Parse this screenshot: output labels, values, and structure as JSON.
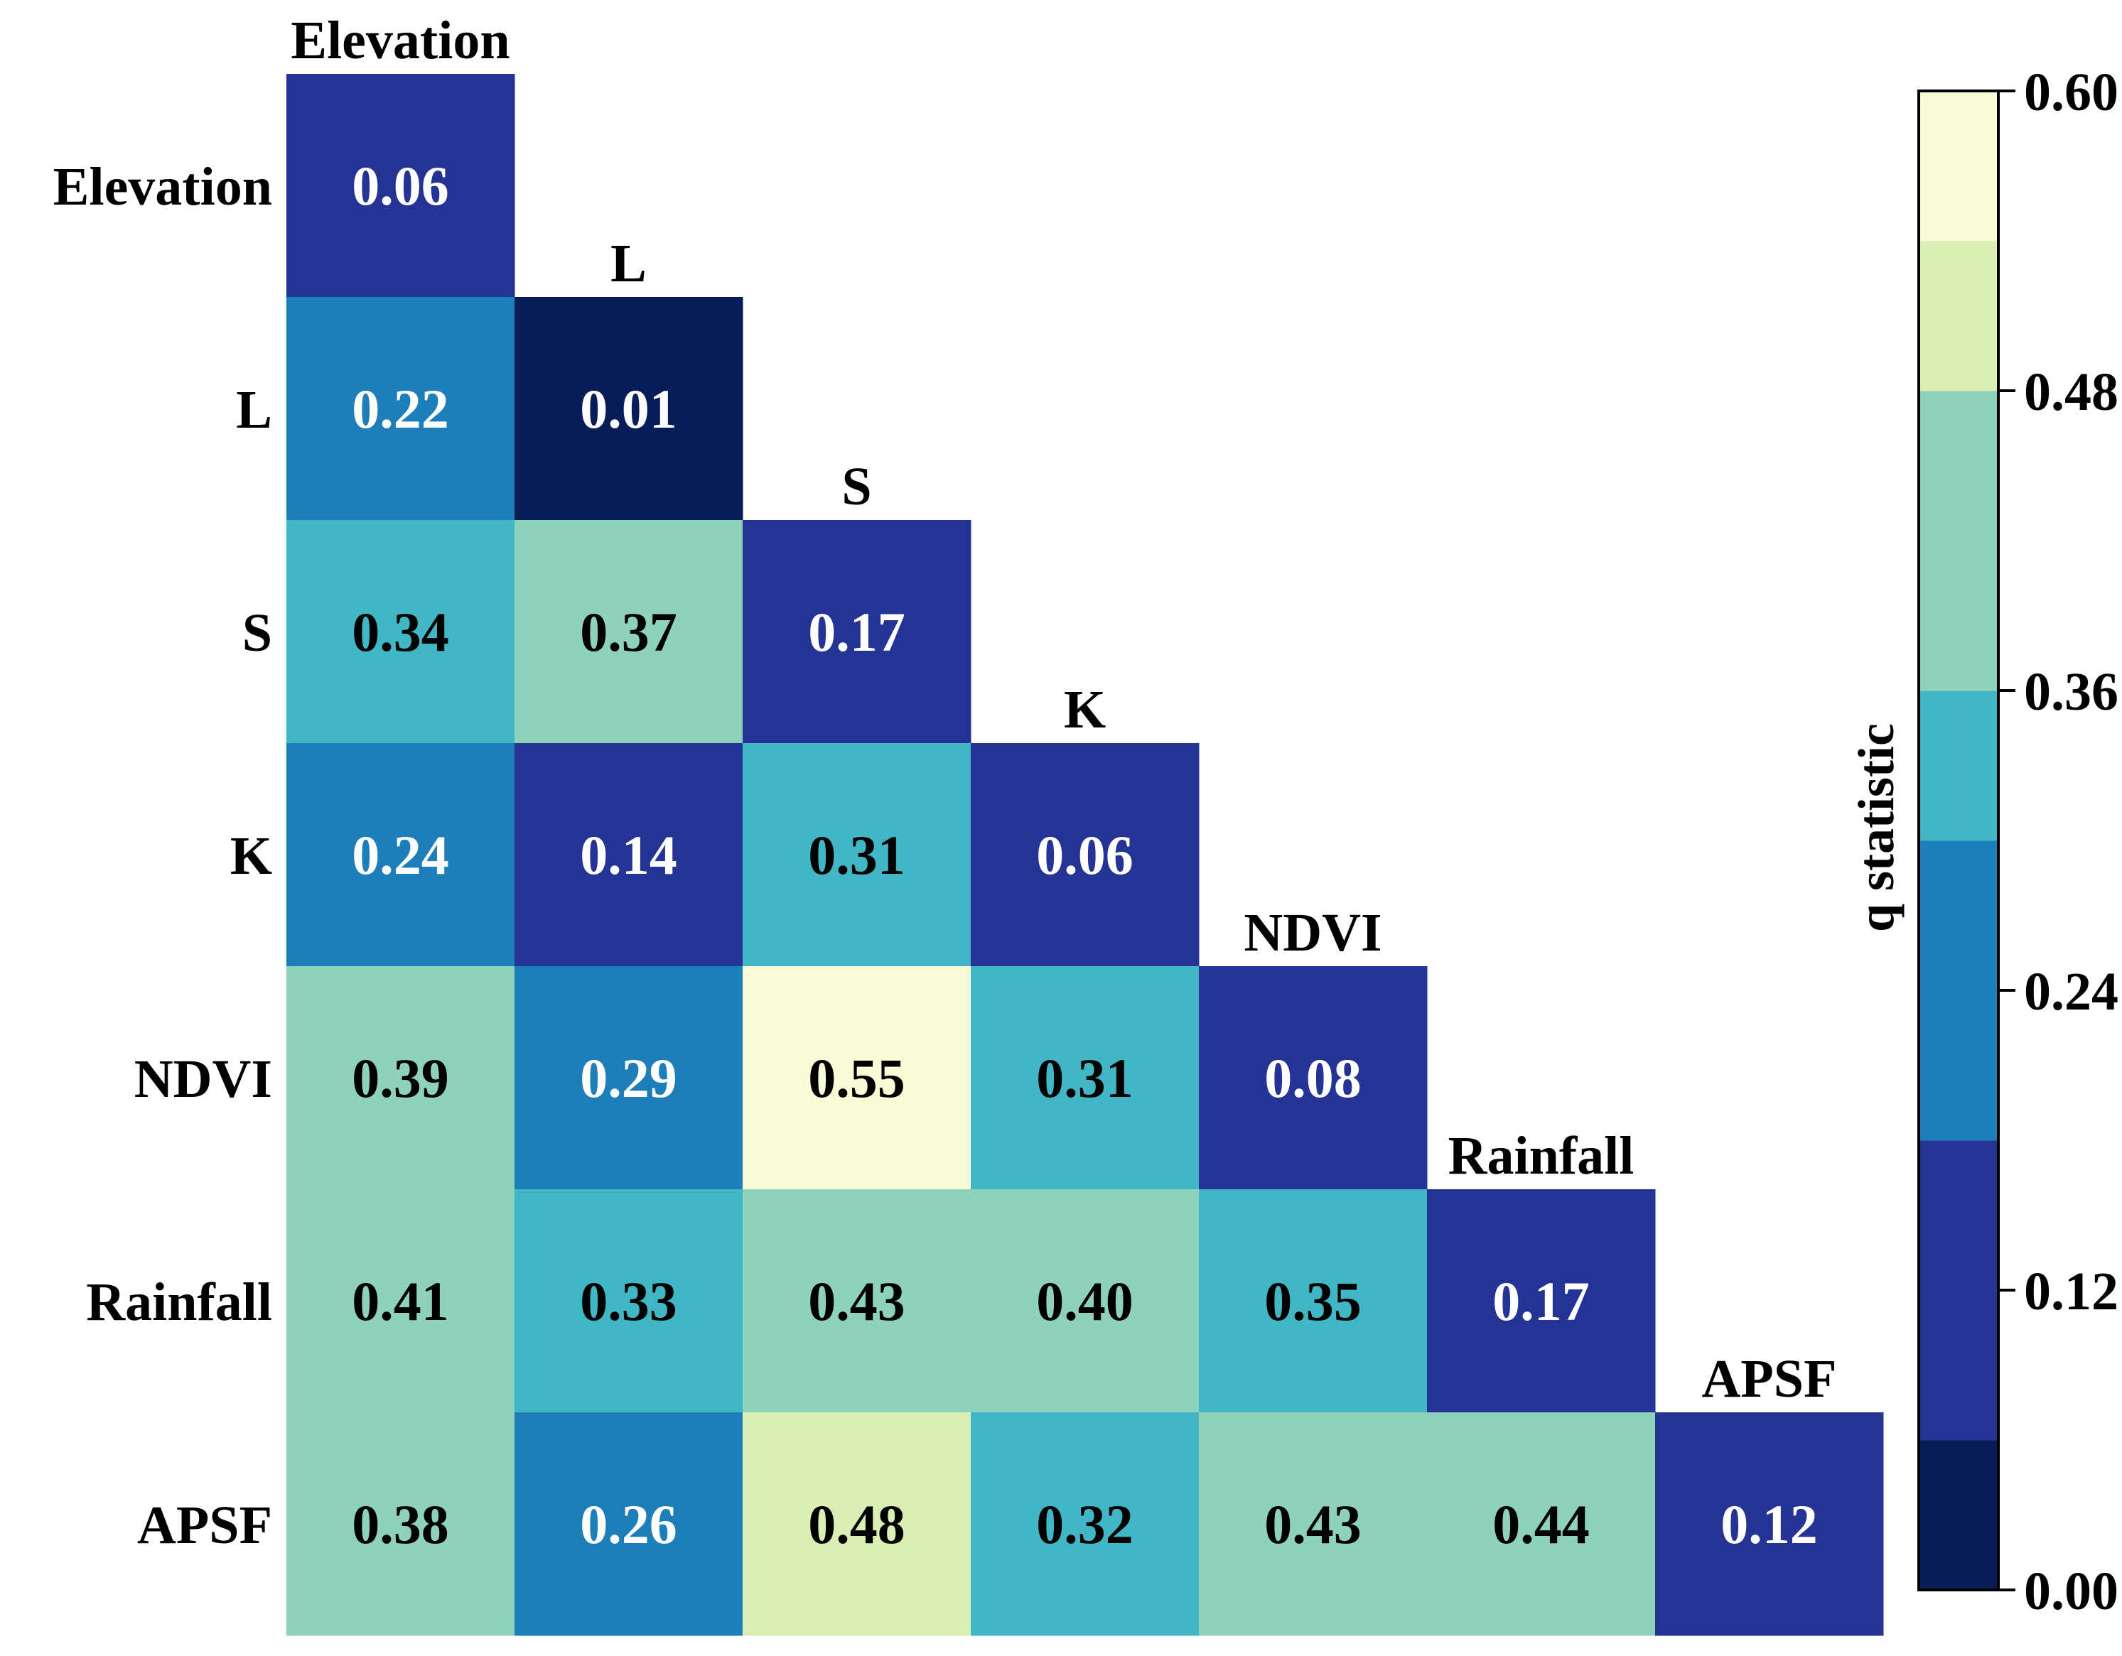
{
  "chart_data": {
    "type": "heatmap",
    "variables": [
      "Elevation",
      "L",
      "S",
      "K",
      "NDVI",
      "Rainfall",
      "APSF"
    ],
    "matrix": [
      [
        0.06
      ],
      [
        0.22,
        0.01
      ],
      [
        0.34,
        0.37,
        0.17
      ],
      [
        0.24,
        0.14,
        0.31,
        0.06
      ],
      [
        0.39,
        0.29,
        0.55,
        0.31,
        0.08
      ],
      [
        0.41,
        0.33,
        0.43,
        0.4,
        0.35,
        0.17
      ],
      [
        0.38,
        0.26,
        0.48,
        0.32,
        0.43,
        0.44,
        0.12
      ]
    ],
    "display_values": [
      [
        "0.06"
      ],
      [
        "0.22",
        "0.01"
      ],
      [
        "0.34",
        "0.37",
        "0.17"
      ],
      [
        "0.24",
        "0.14",
        "0.31",
        "0.06"
      ],
      [
        "0.39",
        "0.29",
        "0.55",
        "0.31",
        "0.08"
      ],
      [
        "0.41",
        "0.33",
        "0.43",
        "0.40",
        "0.35",
        "0.17"
      ],
      [
        "0.38",
        "0.26",
        "0.48",
        "0.32",
        "0.43",
        "0.44",
        "0.12"
      ]
    ],
    "colorbar": {
      "title": "q statistic",
      "range": [
        0.0,
        0.6
      ],
      "ticks": [
        "0.00",
        "0.12",
        "0.24",
        "0.36",
        "0.48",
        "0.60"
      ],
      "bins": [
        {
          "from": 0.0,
          "to": 0.06,
          "color": "#081d58"
        },
        {
          "from": 0.06,
          "to": 0.12,
          "color": "#253494"
        },
        {
          "from": 0.12,
          "to": 0.18,
          "color": "#253494"
        },
        {
          "from": 0.18,
          "to": 0.24,
          "color": "#1d7eb9"
        },
        {
          "from": 0.24,
          "to": 0.3,
          "color": "#1d7eb9"
        },
        {
          "from": 0.3,
          "to": 0.36,
          "color": "#41b6c4"
        },
        {
          "from": 0.36,
          "to": 0.42,
          "color": "#8fd2bb"
        },
        {
          "from": 0.42,
          "to": 0.48,
          "color": "#8fd2bb"
        },
        {
          "from": 0.48,
          "to": 0.54,
          "color": "#d9efb4"
        },
        {
          "from": 0.54,
          "to": 0.6,
          "color": "#f8fbd6"
        }
      ]
    },
    "dark_text_color": "#000000",
    "light_text_color": "#ffffff"
  }
}
